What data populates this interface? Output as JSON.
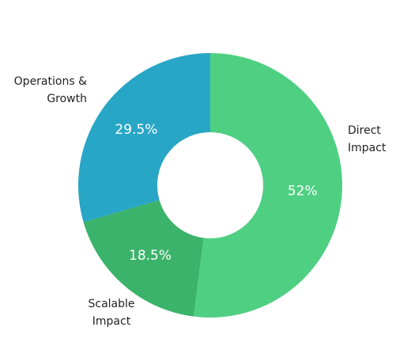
{
  "chart_data": {
    "type": "donut",
    "categories": [
      "Direct Impact",
      "Scalable Impact",
      "Operations & Growth"
    ],
    "values": [
      52,
      18.5,
      29.5
    ],
    "value_labels": [
      "52%",
      "18.5%",
      "29.5%"
    ],
    "colors": [
      "#4fcf82",
      "#3bb36a",
      "#28a6c6"
    ]
  }
}
